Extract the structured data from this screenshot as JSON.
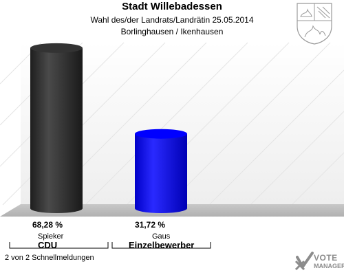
{
  "header": {
    "title": "Stadt Willebadessen",
    "subtitle": "Wahl des/der Landrats/Landrätin 25.05.2014",
    "subtitle2": "Borlinghausen / Ikenhausen"
  },
  "footnote": "2 von 2 Schnellmeldungen",
  "brand": {
    "line1": "VOTE",
    "line2": "MANAGER"
  },
  "colors": {
    "bar_cdu": "#333333",
    "bar_einzel": "#0000ff",
    "background_floor": "#c0c0c0"
  },
  "chart_data": {
    "type": "bar",
    "categories": [
      "CDU",
      "Einzelbewerber"
    ],
    "candidates": [
      "Spieker",
      "Gaus"
    ],
    "values": [
      68.28,
      31.72
    ],
    "value_labels": [
      "68,28 %",
      "31,72 %"
    ],
    "ylim": [
      0,
      70
    ],
    "grid": false,
    "legend": "none",
    "bar_colors": [
      "#333333",
      "#0000ff"
    ]
  }
}
